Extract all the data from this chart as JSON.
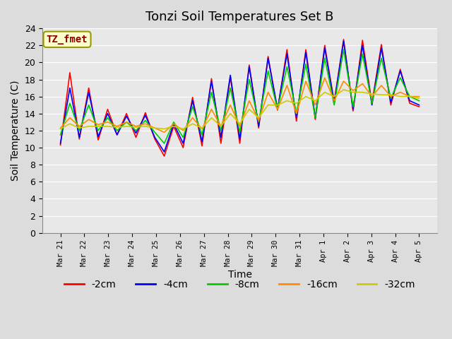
{
  "title": "Tonzi Soil Temperatures Set B",
  "xlabel": "Time",
  "ylabel": "Soil Temperature (C)",
  "annotation": "TZ_fmet",
  "annotation_color": "#8B0000",
  "annotation_bg": "#FFFFCC",
  "bg_color": "#E8E8E8",
  "ylim": [
    0,
    24
  ],
  "yticks": [
    0,
    2,
    4,
    6,
    8,
    10,
    12,
    14,
    16,
    18,
    20,
    22,
    24
  ],
  "series_colors": {
    "-2cm": "#FF0000",
    "-4cm": "#0000FF",
    "-8cm": "#00CC00",
    "-16cm": "#FF8C00",
    "-32cm": "#CCCC00"
  },
  "series_order": [
    "-2cm",
    "-4cm",
    "-8cm",
    "-16cm",
    "-32cm"
  ],
  "x_labels": [
    "Mar 21",
    "Mar 22",
    "Mar 23",
    "Mar 24",
    "Mar 25",
    "Mar 26",
    "Mar 27",
    "Mar 28",
    "Mar 29",
    "Mar 30",
    "Mar 31",
    "Apr 1",
    "Apr 2",
    "Apr 3",
    "Apr 4",
    "Apr 5"
  ],
  "num_days": 15,
  "data": {
    "-2cm": [
      10.3,
      18.8,
      11.0,
      17.0,
      10.9,
      14.5,
      11.5,
      14.0,
      11.2,
      14.1,
      11.0,
      9.0,
      12.5,
      10.0,
      15.9,
      10.2,
      18.1,
      10.5,
      18.3,
      10.5,
      19.7,
      12.3,
      20.7,
      14.4,
      21.5,
      13.1,
      21.5,
      13.3,
      22.0,
      15.4,
      22.7,
      14.3,
      22.6,
      15.2,
      22.1,
      15.0,
      19.2,
      15.2,
      14.8
    ],
    "-4cm": [
      10.5,
      17.0,
      11.2,
      16.5,
      11.3,
      14.0,
      11.5,
      13.7,
      11.7,
      13.8,
      11.2,
      9.5,
      12.8,
      10.5,
      15.5,
      10.7,
      17.8,
      11.2,
      18.5,
      11.0,
      19.5,
      12.5,
      20.5,
      14.5,
      21.0,
      13.5,
      21.2,
      13.5,
      21.7,
      15.2,
      22.5,
      14.5,
      22.0,
      15.0,
      21.7,
      15.3,
      19.0,
      15.5,
      15.0
    ],
    "-8cm": [
      11.5,
      15.2,
      12.0,
      15.0,
      12.0,
      13.5,
      12.0,
      13.0,
      12.0,
      13.2,
      11.8,
      10.5,
      13.0,
      11.2,
      14.8,
      11.5,
      16.5,
      12.0,
      17.0,
      11.8,
      18.0,
      13.0,
      19.0,
      14.5,
      19.5,
      14.0,
      19.8,
      13.5,
      20.5,
      15.0,
      21.5,
      14.8,
      21.0,
      15.2,
      20.5,
      15.8,
      18.2,
      16.0,
      15.5
    ],
    "-16cm": [
      12.3,
      13.5,
      12.5,
      13.3,
      12.7,
      13.0,
      12.5,
      13.0,
      12.5,
      12.8,
      12.3,
      11.8,
      12.8,
      12.0,
      13.5,
      12.2,
      14.5,
      12.5,
      15.0,
      12.5,
      15.5,
      13.2,
      16.5,
      14.5,
      17.3,
      14.0,
      17.8,
      15.0,
      18.2,
      15.5,
      17.8,
      16.7,
      17.5,
      16.0,
      17.3,
      16.0,
      16.5,
      16.0,
      16.0
    ],
    "-32cm": [
      12.2,
      12.8,
      12.3,
      12.5,
      12.5,
      12.5,
      12.4,
      12.5,
      12.4,
      12.5,
      12.3,
      12.2,
      12.5,
      12.2,
      12.8,
      12.3,
      13.5,
      12.5,
      14.0,
      12.8,
      14.5,
      13.5,
      15.0,
      15.0,
      15.5,
      15.2,
      16.0,
      15.5,
      16.5,
      16.0,
      16.8,
      16.5,
      16.5,
      16.3,
      16.2,
      16.2,
      16.0,
      16.0,
      15.8
    ]
  }
}
